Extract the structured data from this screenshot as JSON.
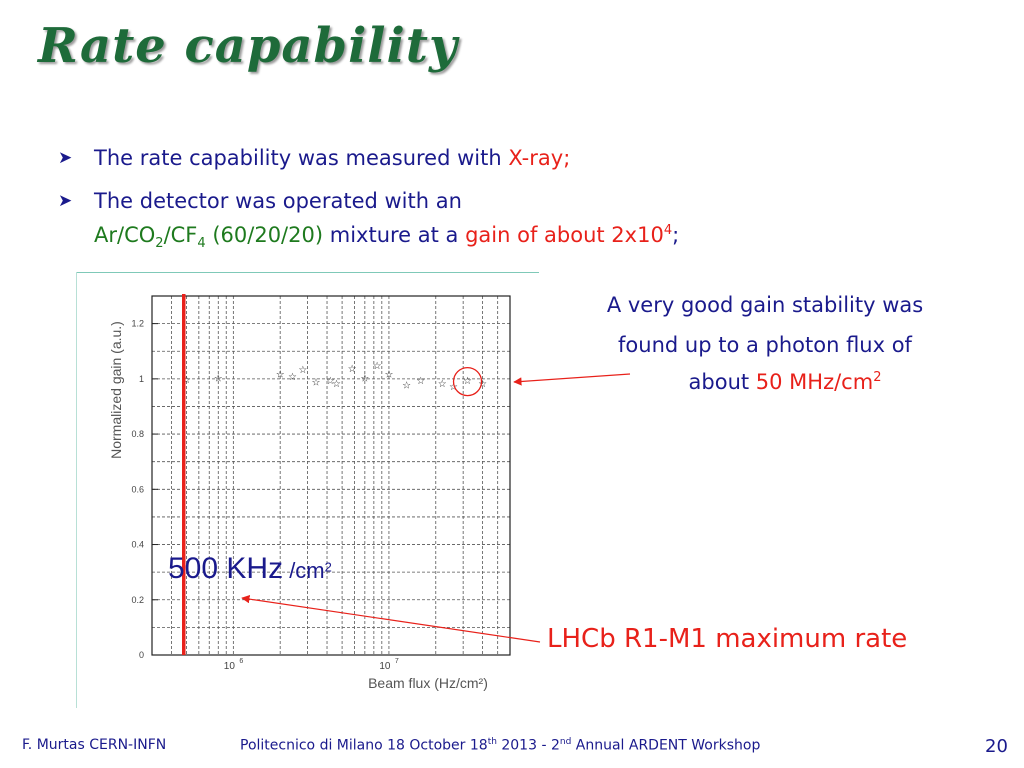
{
  "slide": {
    "title": "Rate capability",
    "bullets": [
      {
        "text": "The rate capability was measured with ",
        "highlight": "X-ray;"
      },
      {
        "line1": "The detector was operated with an",
        "gas_a": "Ar/CO",
        "sub1": "2",
        "gas_b": "/CF",
        "sub2": "4",
        "ratio": " (60/20/20)",
        "mid": " mixture at a ",
        "gain_text": "gain of about 2x10",
        "gain_exp": "4",
        "tail": ";"
      }
    ],
    "note": {
      "line1": "A very good gain stability was",
      "line2": "found up to a photon flux of",
      "about": "about ",
      "value": "50 MHz/cm",
      "exp": "2"
    },
    "rate_label": {
      "big": "500 KHz",
      "small": " /cm",
      "exp": "2"
    },
    "lhcb_label": "LHCb R1-M1 maximum rate",
    "footer": {
      "author": "F. Murtas CERN-INFN",
      "venue_a": "Politecnico di Milano 18 October 18",
      "venue_sup1": "th",
      "venue_b": " 2013 - 2",
      "venue_sup2": "nd",
      "venue_c": " Annual ARDENT Workshop",
      "page": "20"
    },
    "colors": {
      "title": "#1e6b3a",
      "text": "#1a1a8c",
      "accent": "#e8211a"
    }
  },
  "chart_data": {
    "type": "scatter",
    "xlabel": "Beam flux (Hz/cm²)",
    "ylabel": "Normalized gain (a.u.)",
    "xscale": "log",
    "xlim": [
      300000,
      60000000
    ],
    "ylim": [
      0,
      1.3
    ],
    "yticks": [
      "0",
      "0.2",
      "0.4",
      "0.6",
      "0.8",
      "1",
      "1.2"
    ],
    "xticks": [
      {
        "base": "10",
        "exp": "6",
        "value": 1000000
      },
      {
        "base": "10",
        "exp": "7",
        "value": 10000000
      }
    ],
    "grid": true,
    "x": [
      500000,
      800000,
      2000000,
      2400000,
      2800000,
      3400000,
      4200000,
      4600000,
      5800000,
      7000000,
      8400000,
      10000000,
      13000000,
      16000000,
      22000000,
      26000000,
      32000000,
      40000000
    ],
    "y": [
      1.0,
      1.005,
      1.02,
      1.01,
      1.035,
      0.99,
      0.995,
      0.985,
      1.04,
      1.005,
      1.05,
      1.02,
      0.98,
      0.995,
      0.985,
      0.975,
      0.995,
      0.985
    ],
    "annotations": [
      {
        "kind": "vertical-line",
        "x": 480000,
        "color": "#e8211a"
      },
      {
        "kind": "circle",
        "x": 32000000,
        "y": 0.99,
        "color": "#e8211a"
      }
    ]
  }
}
